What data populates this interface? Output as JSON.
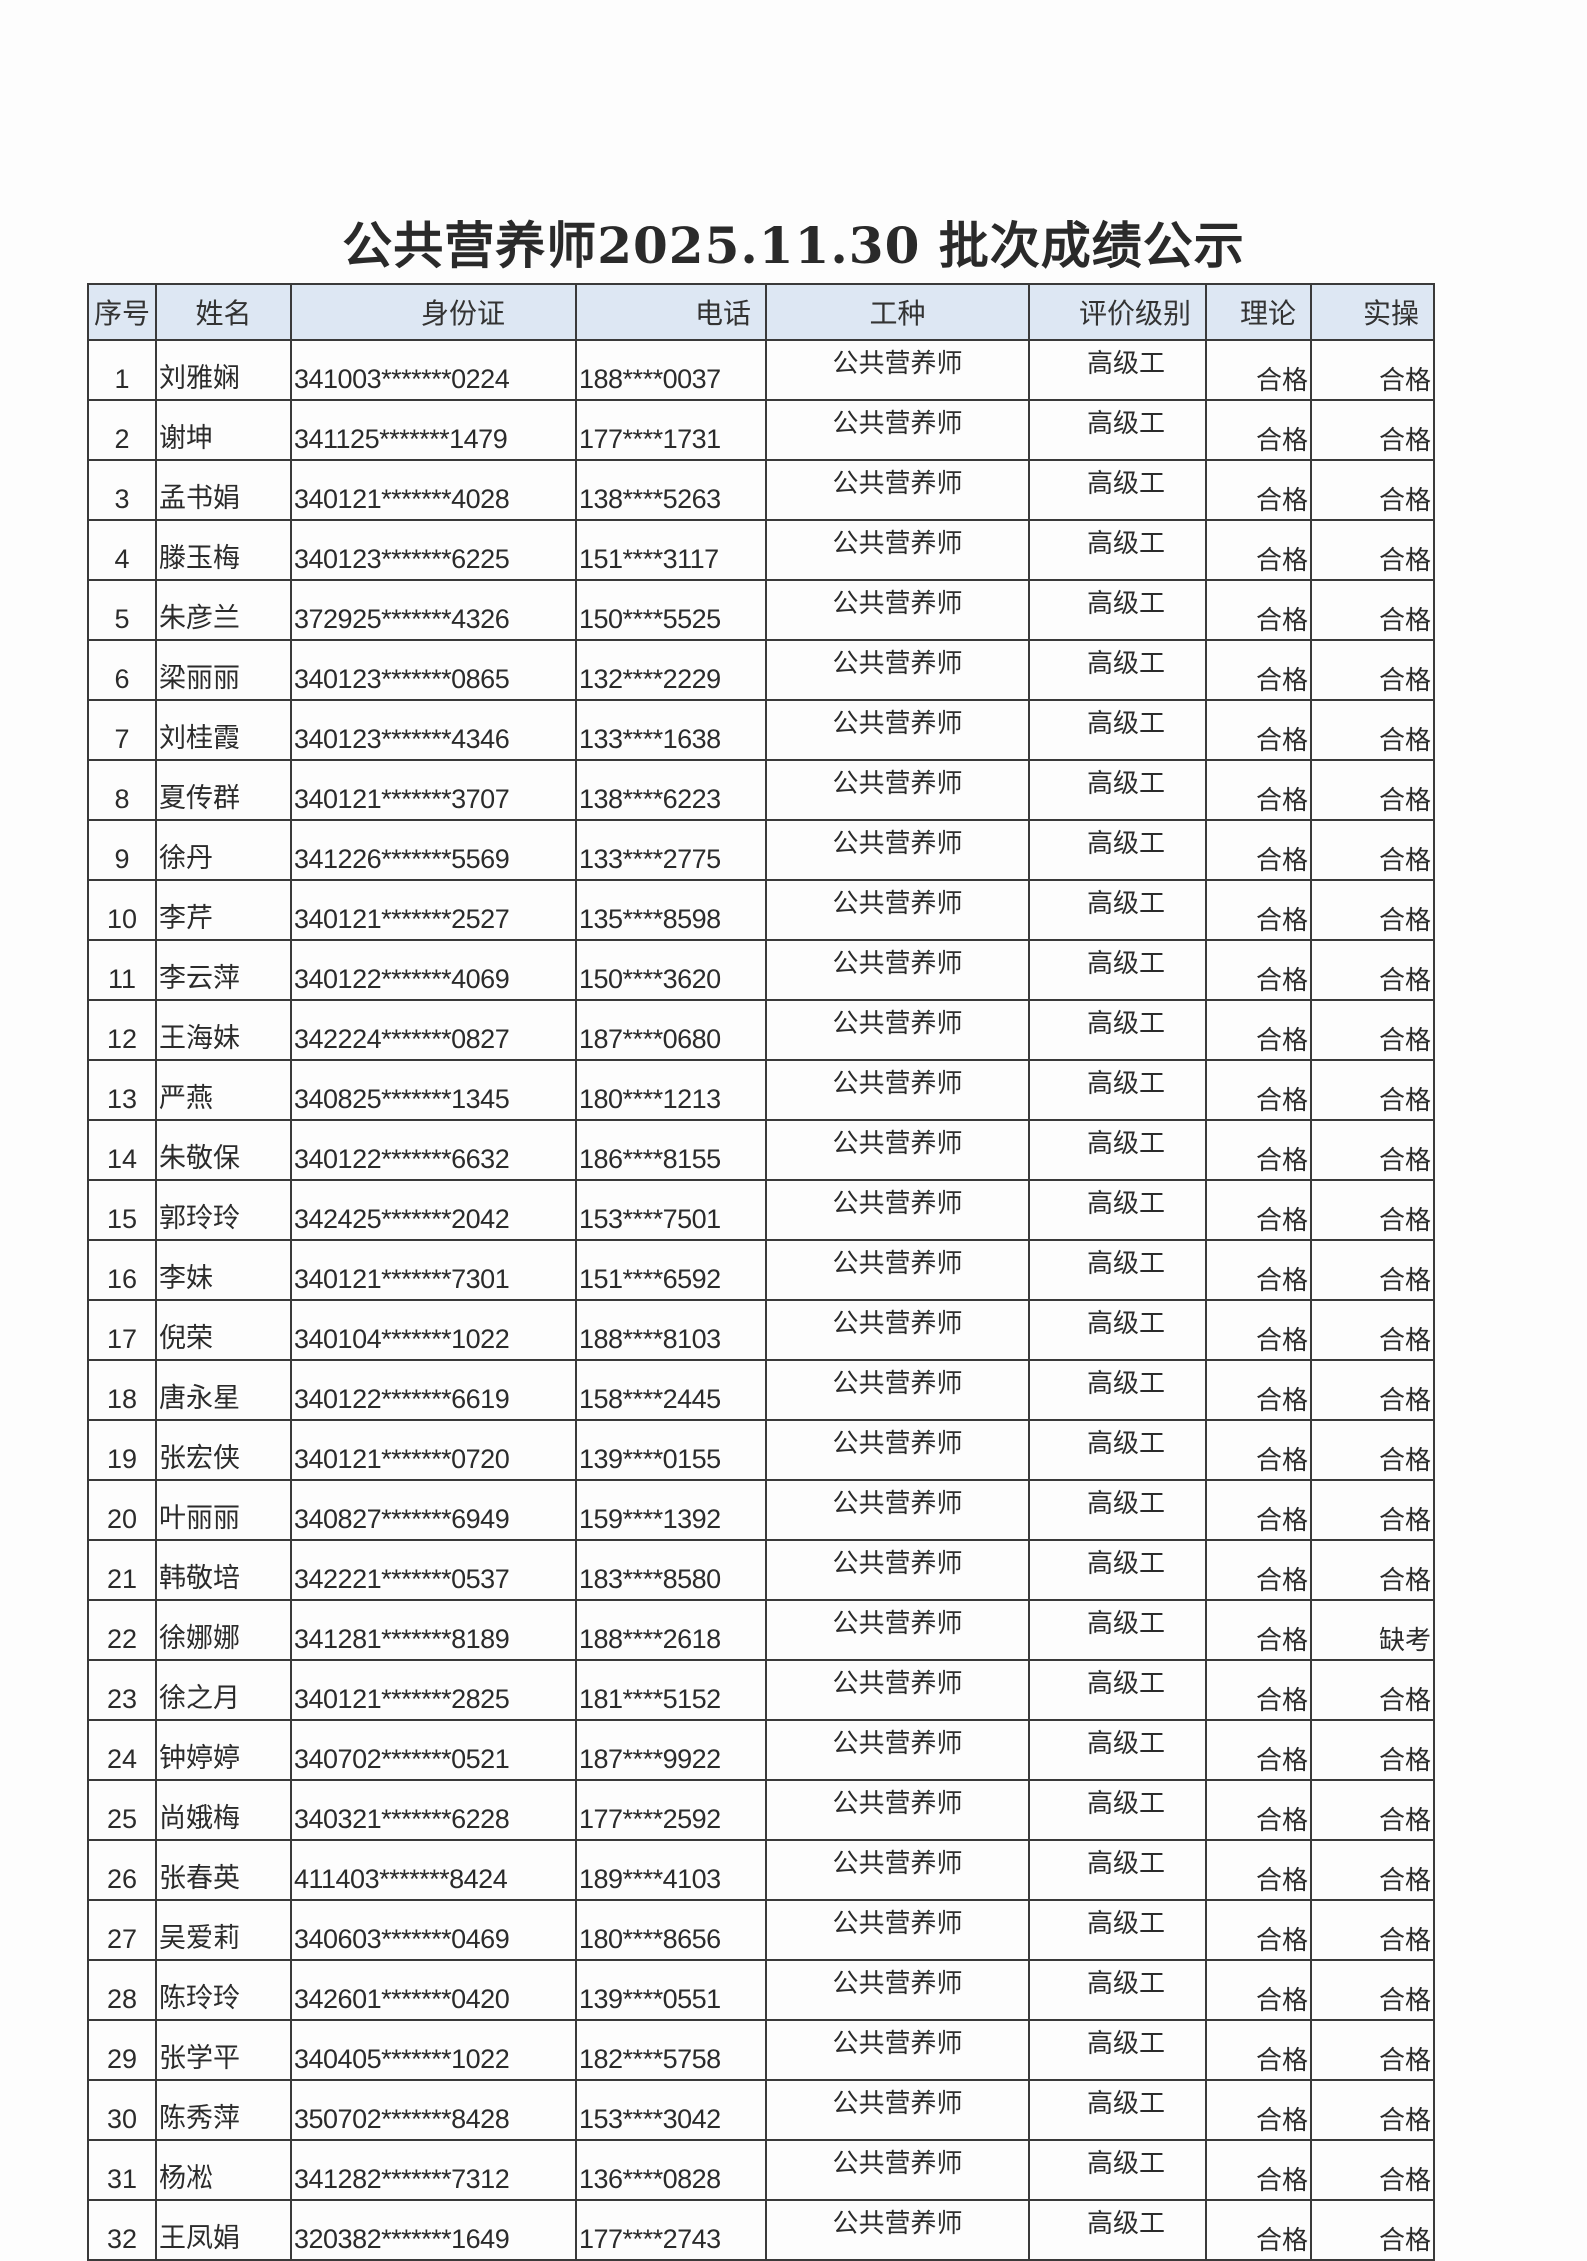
{
  "title": "公共营养师2025.11.30 批次成绩公示",
  "headers": {
    "no": "序号",
    "name": "姓名",
    "id": "身份证",
    "phone": "电话",
    "job": "工种",
    "level": "评价级别",
    "theory": "理论",
    "practice": "实操"
  },
  "rows": [
    {
      "no": "1",
      "name": "刘雅娴",
      "id": "341003*******0224",
      "phone": "188****0037",
      "job": "公共营养师",
      "level": "高级工",
      "theory": "合格",
      "practice": "合格"
    },
    {
      "no": "2",
      "name": "谢坤",
      "id": "341125*******1479",
      "phone": "177****1731",
      "job": "公共营养师",
      "level": "高级工",
      "theory": "合格",
      "practice": "合格"
    },
    {
      "no": "3",
      "name": "孟书娟",
      "id": "340121*******4028",
      "phone": "138****5263",
      "job": "公共营养师",
      "level": "高级工",
      "theory": "合格",
      "practice": "合格"
    },
    {
      "no": "4",
      "name": "滕玉梅",
      "id": "340123*******6225",
      "phone": "151****3117",
      "job": "公共营养师",
      "level": "高级工",
      "theory": "合格",
      "practice": "合格"
    },
    {
      "no": "5",
      "name": "朱彦兰",
      "id": "372925*******4326",
      "phone": "150****5525",
      "job": "公共营养师",
      "level": "高级工",
      "theory": "合格",
      "practice": "合格"
    },
    {
      "no": "6",
      "name": "梁丽丽",
      "id": "340123*******0865",
      "phone": "132****2229",
      "job": "公共营养师",
      "level": "高级工",
      "theory": "合格",
      "practice": "合格"
    },
    {
      "no": "7",
      "name": "刘桂霞",
      "id": "340123*******4346",
      "phone": "133****1638",
      "job": "公共营养师",
      "level": "高级工",
      "theory": "合格",
      "practice": "合格"
    },
    {
      "no": "8",
      "name": "夏传群",
      "id": "340121*******3707",
      "phone": "138****6223",
      "job": "公共营养师",
      "level": "高级工",
      "theory": "合格",
      "practice": "合格"
    },
    {
      "no": "9",
      "name": "徐丹",
      "id": "341226*******5569",
      "phone": "133****2775",
      "job": "公共营养师",
      "level": "高级工",
      "theory": "合格",
      "practice": "合格"
    },
    {
      "no": "10",
      "name": "李芹",
      "id": "340121*******2527",
      "phone": "135****8598",
      "job": "公共营养师",
      "level": "高级工",
      "theory": "合格",
      "practice": "合格"
    },
    {
      "no": "11",
      "name": "李云萍",
      "id": "340122*******4069",
      "phone": "150****3620",
      "job": "公共营养师",
      "level": "高级工",
      "theory": "合格",
      "practice": "合格"
    },
    {
      "no": "12",
      "name": "王海妹",
      "id": "342224*******0827",
      "phone": "187****0680",
      "job": "公共营养师",
      "level": "高级工",
      "theory": "合格",
      "practice": "合格"
    },
    {
      "no": "13",
      "name": "严燕",
      "id": "340825*******1345",
      "phone": "180****1213",
      "job": "公共营养师",
      "level": "高级工",
      "theory": "合格",
      "practice": "合格"
    },
    {
      "no": "14",
      "name": "朱敬保",
      "id": "340122*******6632",
      "phone": "186****8155",
      "job": "公共营养师",
      "level": "高级工",
      "theory": "合格",
      "practice": "合格"
    },
    {
      "no": "15",
      "name": "郭玲玲",
      "id": "342425*******2042",
      "phone": "153****7501",
      "job": "公共营养师",
      "level": "高级工",
      "theory": "合格",
      "practice": "合格"
    },
    {
      "no": "16",
      "name": "李妹",
      "id": "340121*******7301",
      "phone": "151****6592",
      "job": "公共营养师",
      "level": "高级工",
      "theory": "合格",
      "practice": "合格"
    },
    {
      "no": "17",
      "name": "倪荣",
      "id": "340104*******1022",
      "phone": "188****8103",
      "job": "公共营养师",
      "level": "高级工",
      "theory": "合格",
      "practice": "合格"
    },
    {
      "no": "18",
      "name": "唐永星",
      "id": "340122*******6619",
      "phone": "158****2445",
      "job": "公共营养师",
      "level": "高级工",
      "theory": "合格",
      "practice": "合格"
    },
    {
      "no": "19",
      "name": "张宏侠",
      "id": "340121*******0720",
      "phone": "139****0155",
      "job": "公共营养师",
      "level": "高级工",
      "theory": "合格",
      "practice": "合格"
    },
    {
      "no": "20",
      "name": "叶丽丽",
      "id": "340827*******6949",
      "phone": "159****1392",
      "job": "公共营养师",
      "level": "高级工",
      "theory": "合格",
      "practice": "合格"
    },
    {
      "no": "21",
      "name": "韩敬培",
      "id": "342221*******0537",
      "phone": "183****8580",
      "job": "公共营养师",
      "level": "高级工",
      "theory": "合格",
      "practice": "合格"
    },
    {
      "no": "22",
      "name": "徐娜娜",
      "id": "341281*******8189",
      "phone": "188****2618",
      "job": "公共营养师",
      "level": "高级工",
      "theory": "合格",
      "practice": "缺考"
    },
    {
      "no": "23",
      "name": "徐之月",
      "id": "340121*******2825",
      "phone": "181****5152",
      "job": "公共营养师",
      "level": "高级工",
      "theory": "合格",
      "practice": "合格"
    },
    {
      "no": "24",
      "name": "钟婷婷",
      "id": "340702*******0521",
      "phone": "187****9922",
      "job": "公共营养师",
      "level": "高级工",
      "theory": "合格",
      "practice": "合格"
    },
    {
      "no": "25",
      "name": "尚娥梅",
      "id": "340321*******6228",
      "phone": "177****2592",
      "job": "公共营养师",
      "level": "高级工",
      "theory": "合格",
      "practice": "合格"
    },
    {
      "no": "26",
      "name": "张春英",
      "id": "411403*******8424",
      "phone": "189****4103",
      "job": "公共营养师",
      "level": "高级工",
      "theory": "合格",
      "practice": "合格"
    },
    {
      "no": "27",
      "name": "吴爱莉",
      "id": "340603*******0469",
      "phone": "180****8656",
      "job": "公共营养师",
      "level": "高级工",
      "theory": "合格",
      "practice": "合格"
    },
    {
      "no": "28",
      "name": "陈玲玲",
      "id": "342601*******0420",
      "phone": "139****0551",
      "job": "公共营养师",
      "level": "高级工",
      "theory": "合格",
      "practice": "合格"
    },
    {
      "no": "29",
      "name": "张学平",
      "id": "340405*******1022",
      "phone": "182****5758",
      "job": "公共营养师",
      "level": "高级工",
      "theory": "合格",
      "practice": "合格"
    },
    {
      "no": "30",
      "name": "陈秀萍",
      "id": "350702*******8428",
      "phone": "153****3042",
      "job": "公共营养师",
      "level": "高级工",
      "theory": "合格",
      "practice": "合格"
    },
    {
      "no": "31",
      "name": "杨凇",
      "id": "341282*******7312",
      "phone": "136****0828",
      "job": "公共营养师",
      "level": "高级工",
      "theory": "合格",
      "practice": "合格"
    },
    {
      "no": "32",
      "name": "王凤娟",
      "id": "320382*******1649",
      "phone": "177****2743",
      "job": "公共营养师",
      "level": "高级工",
      "theory": "合格",
      "practice": "合格"
    }
  ]
}
